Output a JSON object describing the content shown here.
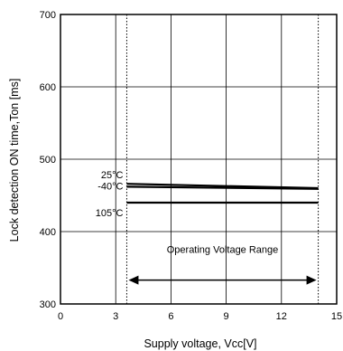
{
  "chart_data": {
    "type": "line",
    "xlabel": "Supply voltage, Vcc[V]",
    "ylabel": "Lock detection ON time,Ton [ms]",
    "xlim": [
      0,
      15
    ],
    "ylim": [
      300,
      700
    ],
    "xticks": [
      0,
      3,
      6,
      9,
      12,
      15
    ],
    "yticks": [
      300,
      400,
      500,
      600,
      700
    ],
    "x_gridlines": [
      3,
      6,
      9,
      12
    ],
    "y_gridlines": [
      400,
      500,
      600
    ],
    "operating_range": {
      "label": "Operating Voltage Range",
      "start": 3.6,
      "end": 14.0,
      "arrow_y": 333
    },
    "series": [
      {
        "name": "25°C",
        "x": [
          3.6,
          14.0
        ],
        "y": [
          466,
          460
        ]
      },
      {
        "name": "-40°C",
        "x": [
          3.6,
          14.0
        ],
        "y": [
          462,
          459
        ]
      },
      {
        "name": "105°C",
        "x": [
          3.6,
          14.0
        ],
        "y": [
          440,
          440
        ]
      }
    ]
  }
}
